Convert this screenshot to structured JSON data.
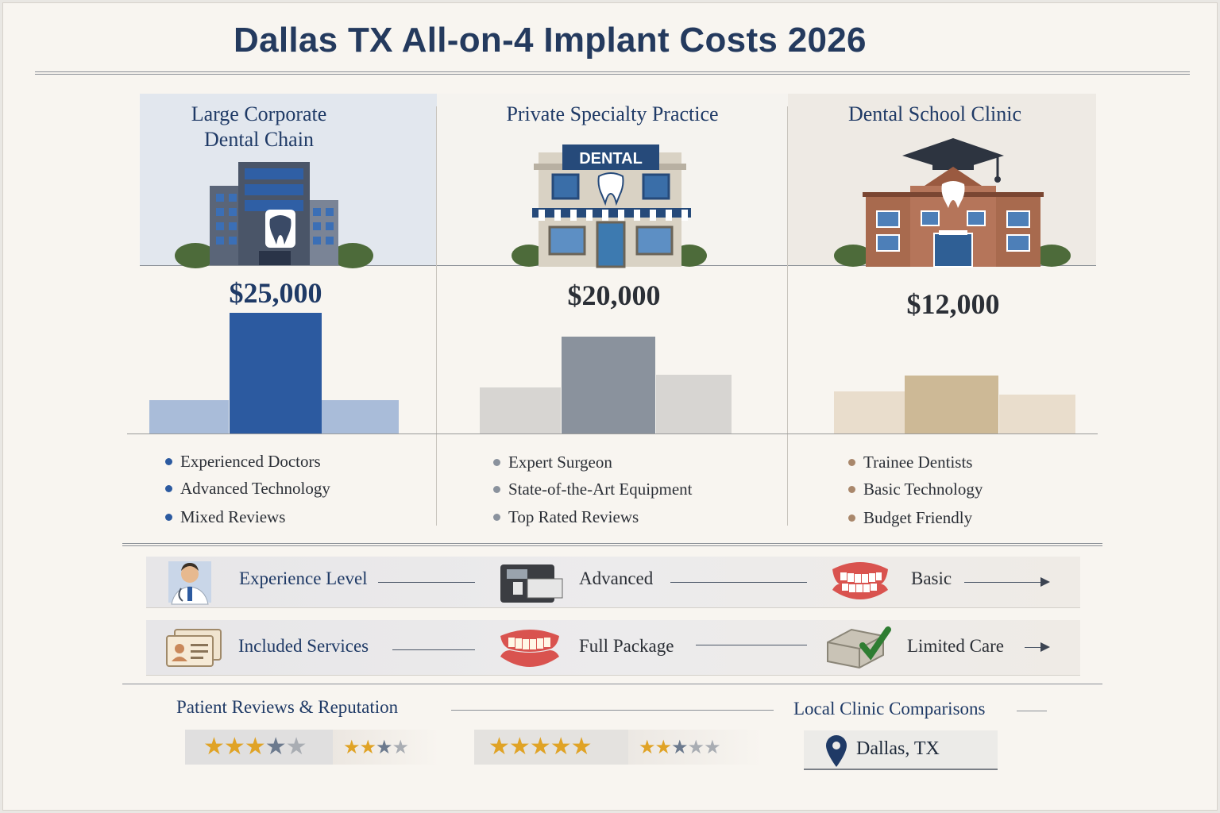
{
  "title": "Dallas TX All-on-4 Implant Costs 2026",
  "columns": [
    {
      "name": "Large Corporate Dental Chain",
      "name_lines": [
        "Large Corporate",
        "Dental Chain"
      ],
      "price": "$25,000",
      "features": [
        "Experienced Doctors",
        "Advanced Technology",
        "Mixed Reviews"
      ],
      "colors": {
        "main": "#2c5aa0",
        "side": "#a9bcd9",
        "dot": "#2c5aa0",
        "price": "#1f3a66",
        "panel": "#e2e7ee"
      }
    },
    {
      "name": "Private Specialty Practice",
      "name_lines": [
        "Private Specialty Practice"
      ],
      "price": "$20,000",
      "features": [
        "Expert Surgeon",
        "State-of-the-Art Equipment",
        "Top Rated Reviews"
      ],
      "colors": {
        "main": "#8a929d",
        "side": "#d7d5d2",
        "dot": "#8a929d",
        "price": "#2b2f36",
        "panel": "#f5f3ef"
      }
    },
    {
      "name": "Dental School Clinic",
      "name_lines": [
        "Dental School Clinic"
      ],
      "price": "$12,000",
      "features": [
        "Trainee Dentists",
        "Basic Technology",
        "Budget Friendly"
      ],
      "colors": {
        "main": "#cdb996",
        "side": "#e9ddcc",
        "dot": "#a9876b",
        "price": "#2b2f36",
        "panel": "#eeeae4"
      }
    }
  ],
  "building_sign": "DENTAL",
  "comparison_rows": [
    {
      "label": "Experience Level",
      "values": [
        "Advanced",
        "Basic"
      ],
      "icons": [
        "doctor-icon",
        "equipment-icon",
        "denture-icon"
      ]
    },
    {
      "label": "Included Services",
      "values": [
        "Full Package",
        "Limited Care"
      ],
      "icons": [
        "id-card-icon",
        "denture-icon",
        "check-box-icon"
      ]
    }
  ],
  "reviews": {
    "label": "Patient Reviews & Reputation",
    "ratings": [
      {
        "filled": 3,
        "total": 5
      },
      {
        "filled": 2,
        "total": 4
      },
      {
        "filled": 5,
        "total": 5
      },
      {
        "filled": 2,
        "total": 5
      }
    ]
  },
  "local": {
    "label": "Local Clinic Comparisons",
    "location": "Dallas, TX"
  },
  "chart_data": {
    "type": "bar",
    "categories": [
      "Large Corporate Dental Chain",
      "Private Specialty Practice",
      "Dental School Clinic"
    ],
    "values": [
      25000,
      20000,
      12000
    ],
    "title": "Dallas TX All-on-4 Implant Costs 2026",
    "xlabel": "",
    "ylabel": "",
    "data_labels": [
      "$25,000",
      "$20,000",
      "$12,000"
    ]
  }
}
